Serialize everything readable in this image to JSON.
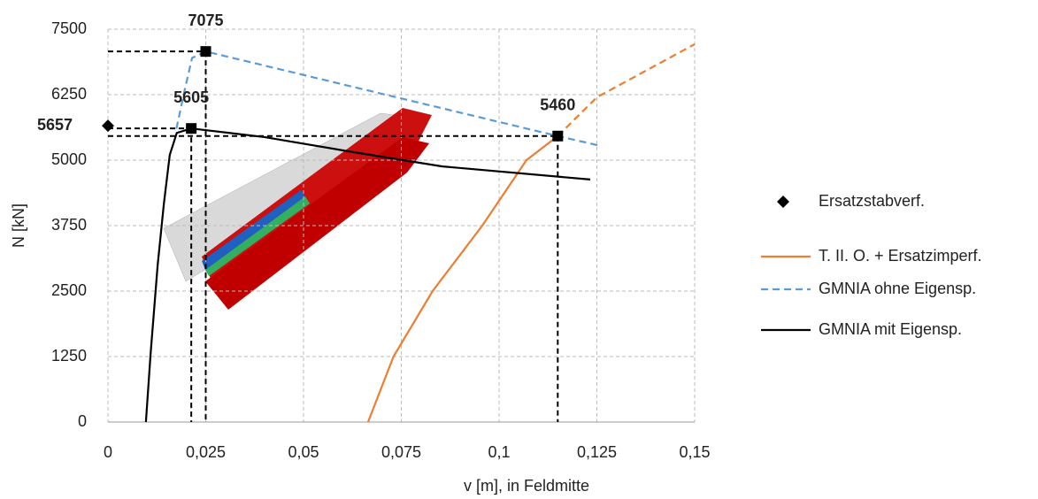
{
  "chart_data": {
    "type": "line",
    "xlabel": "v [m], in Feldmitte",
    "ylabel": "N [kN]",
    "xlim": [
      0,
      0.15
    ],
    "ylim": [
      0,
      7500
    ],
    "xticks": [
      0,
      {
        "value": 0.025,
        "label": "0,025"
      },
      {
        "value": 0.05,
        "label": "0,05"
      },
      {
        "value": 0.075,
        "label": "0,075"
      },
      {
        "value": 0.1,
        "label": "0,1"
      },
      {
        "value": 0.125,
        "label": "0,125"
      },
      {
        "value": 0.15,
        "label": "0,15"
      }
    ],
    "yticks": [
      0,
      1250,
      2500,
      3750,
      5000,
      6250,
      7500
    ],
    "grid": true,
    "legend": "right",
    "series": [
      {
        "name": "Ersatzstabverf.",
        "color": "#000000",
        "marker": "diamond",
        "x": [
          0
        ],
        "values": [
          5657
        ]
      },
      {
        "name": "T. II. O. + Ersatzimperf.",
        "color": "#ed7d31",
        "x": [
          0.0665,
          0.073,
          0.083,
          0.0957,
          0.107,
          0.115
        ],
        "values": [
          0,
          1250,
          2500,
          3750,
          5000,
          5460
        ]
      },
      {
        "name": "GMNIA ohne Eigensp.",
        "color": "#5b9bd5",
        "dash": true,
        "x": [
          0.0175,
          0.0195,
          0.0215,
          0.025,
          0.115,
          0.1255
        ],
        "values": [
          5600,
          6300,
          6950,
          7075,
          5460,
          5280
        ]
      },
      {
        "name": "GMNIA mit Eigensp.",
        "color": "#000000",
        "x": [
          0.0097,
          0.0109,
          0.0127,
          0.0143,
          0.0158,
          0.0176,
          0.0213,
          0.04,
          0.063,
          0.0855,
          0.1233
        ],
        "values": [
          0,
          1300,
          2990,
          4170,
          5100,
          5520,
          5605,
          5440,
          5150,
          4880,
          4630
        ]
      },
      {
        "color": "#ed7d31",
        "dash": true,
        "x": [
          0.115,
          0.125,
          0.15
        ],
        "values": [
          5460,
          6200,
          7213
        ]
      }
    ],
    "annotations": [
      {
        "x": 0.025,
        "y": 7075
      },
      {
        "x": 0.0213,
        "y": 5605
      },
      {
        "x": 0.115,
        "y": 5460
      }
    ]
  }
}
